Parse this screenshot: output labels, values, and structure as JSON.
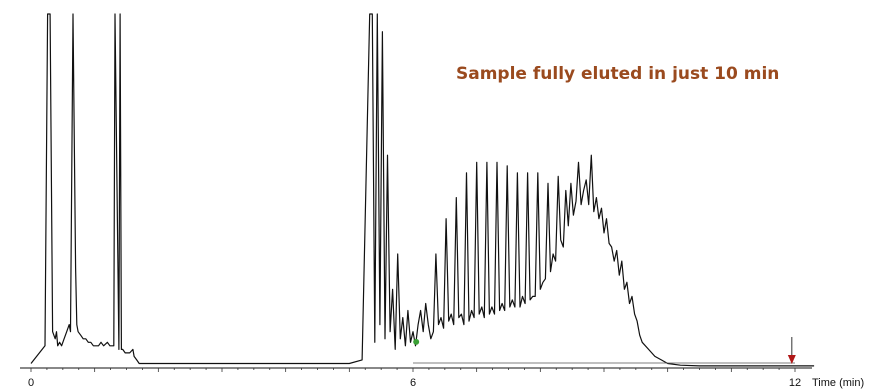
{
  "chart_data": {
    "type": "line",
    "title": "",
    "annotation": "Sample fully eluted in just 10 min",
    "xlabel": "Time (min)",
    "ylabel": "",
    "xlim": [
      0,
      12.3
    ],
    "ylim": [
      0,
      1
    ],
    "grid": false,
    "x_ticks": [
      {
        "value": 0,
        "label": "0"
      },
      {
        "value": 6,
        "label": "6"
      },
      {
        "value": 12,
        "label": "12"
      }
    ],
    "series": [
      {
        "color": "#111111",
        "x": [
          0,
          0.22,
          0.26,
          0.3,
          0.34,
          0.38,
          0.4,
          0.42,
          0.45,
          0.48,
          0.52,
          0.56,
          0.6,
          0.62,
          0.66,
          0.7,
          0.72,
          0.74,
          0.78,
          0.82,
          0.86,
          0.9,
          0.94,
          0.98,
          1.02,
          1.06,
          1.1,
          1.14,
          1.2,
          1.24,
          1.28,
          1.3,
          1.32,
          1.38,
          1.4,
          1.42,
          1.44,
          1.48,
          1.52,
          1.55,
          1.6,
          1.62,
          1.66,
          1.7,
          1.8,
          2,
          2.5,
          3,
          3.5,
          4,
          4.5,
          5,
          5.2,
          5.32,
          5.36,
          5.4,
          5.44,
          5.48,
          5.52,
          5.56,
          5.6,
          5.64,
          5.68,
          5.72,
          5.76,
          5.8,
          5.84,
          5.88,
          5.92,
          5.96,
          6,
          6.04,
          6.08,
          6.12,
          6.16,
          6.2,
          6.24,
          6.28,
          6.32,
          6.36,
          6.4,
          6.44,
          6.48,
          6.52,
          6.56,
          6.6,
          6.64,
          6.68,
          6.72,
          6.76,
          6.8,
          6.84,
          6.88,
          6.92,
          6.96,
          7,
          7.04,
          7.08,
          7.12,
          7.16,
          7.2,
          7.24,
          7.28,
          7.32,
          7.36,
          7.4,
          7.44,
          7.48,
          7.52,
          7.56,
          7.6,
          7.64,
          7.68,
          7.72,
          7.76,
          7.8,
          7.84,
          7.88,
          7.92,
          7.96,
          8,
          8.04,
          8.08,
          8.12,
          8.16,
          8.2,
          8.24,
          8.28,
          8.32,
          8.36,
          8.4,
          8.44,
          8.48,
          8.52,
          8.56,
          8.6,
          8.64,
          8.68,
          8.72,
          8.76,
          8.8,
          8.84,
          8.88,
          8.92,
          8.96,
          9,
          9.04,
          9.08,
          9.12,
          9.16,
          9.2,
          9.24,
          9.28,
          9.32,
          9.36,
          9.4,
          9.44,
          9.48,
          9.52,
          9.56,
          9.6,
          9.7,
          9.8,
          9.9,
          10,
          10.2,
          10.5,
          11,
          11.5,
          12,
          12.3
        ],
        "y": [
          0.01,
          0.06,
          1.0,
          1.0,
          0.1,
          0.08,
          0.1,
          0.06,
          0.07,
          0.06,
          0.08,
          0.1,
          0.12,
          0.1,
          1.0,
          0.28,
          0.12,
          0.1,
          0.09,
          0.08,
          0.08,
          0.07,
          0.07,
          0.06,
          0.06,
          0.06,
          0.07,
          0.06,
          0.07,
          0.06,
          0.06,
          0.06,
          1.0,
          0.05,
          1.0,
          0.05,
          0.05,
          0.04,
          0.04,
          0.04,
          0.05,
          0.03,
          0.02,
          0.01,
          0.01,
          0.01,
          0.01,
          0.01,
          0.01,
          0.01,
          0.01,
          0.01,
          0.02,
          1.0,
          1.0,
          0.07,
          1.0,
          0.12,
          0.95,
          0.08,
          0.6,
          0.1,
          0.22,
          0.05,
          0.32,
          0.08,
          0.14,
          0.06,
          0.16,
          0.07,
          0.1,
          0.06,
          0.12,
          0.16,
          0.1,
          0.18,
          0.12,
          0.08,
          0.1,
          0.32,
          0.12,
          0.14,
          0.11,
          0.42,
          0.13,
          0.15,
          0.12,
          0.48,
          0.14,
          0.15,
          0.12,
          0.55,
          0.13,
          0.16,
          0.14,
          0.58,
          0.15,
          0.17,
          0.14,
          0.58,
          0.15,
          0.17,
          0.15,
          0.58,
          0.16,
          0.18,
          0.16,
          0.57,
          0.17,
          0.19,
          0.17,
          0.55,
          0.17,
          0.2,
          0.18,
          0.55,
          0.19,
          0.2,
          0.2,
          0.55,
          0.22,
          0.24,
          0.25,
          0.52,
          0.27,
          0.32,
          0.3,
          0.54,
          0.36,
          0.34,
          0.5,
          0.4,
          0.52,
          0.43,
          0.47,
          0.58,
          0.46,
          0.5,
          0.53,
          0.46,
          0.6,
          0.44,
          0.48,
          0.42,
          0.45,
          0.38,
          0.42,
          0.35,
          0.34,
          0.3,
          0.33,
          0.26,
          0.3,
          0.22,
          0.24,
          0.18,
          0.2,
          0.15,
          0.13,
          0.09,
          0.07,
          0.05,
          0.03,
          0.02,
          0.01,
          0.005,
          0.003,
          0.003,
          0.003,
          0.003,
          0.003
        ],
        "point_marker": {
          "x": 6.05,
          "y": 0.06,
          "color": "#3aa035"
        }
      }
    ],
    "end_marker": {
      "x": 11.95,
      "color": "#b01818"
    }
  }
}
